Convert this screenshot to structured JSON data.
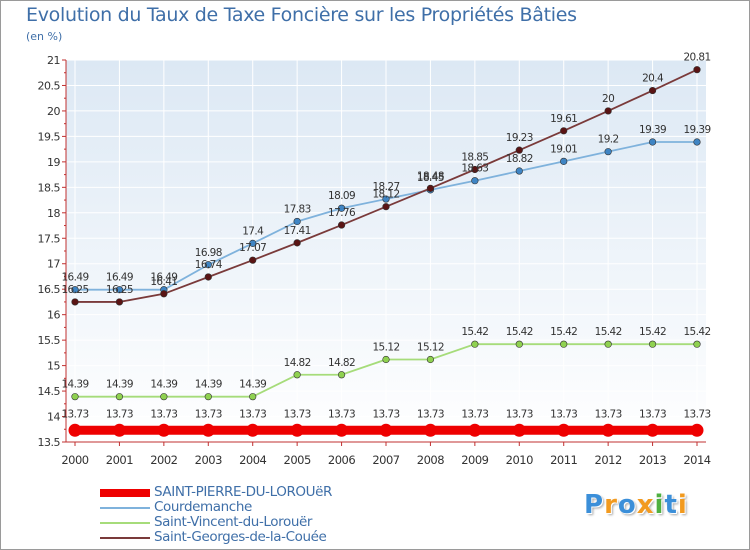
{
  "chart_data": {
    "type": "line",
    "title": "Evolution du Taux de Taxe Foncière sur les Propriétés Bâties",
    "unit_label": "(en %)",
    "x": [
      "2000",
      "2001",
      "2002",
      "2003",
      "2004",
      "2005",
      "2006",
      "2007",
      "2008",
      "2009",
      "2010",
      "2011",
      "2012",
      "2013",
      "2014"
    ],
    "ylim": [
      13.5,
      21
    ],
    "yticks": [
      "13.5",
      "14",
      "14.5",
      "15",
      "15.5",
      "16",
      "16.5",
      "17",
      "17.5",
      "18",
      "18.5",
      "19",
      "19.5",
      "20",
      "20.5",
      "21"
    ],
    "grid": true,
    "series": [
      {
        "name": "SAINT-PIERRE-DU-LOROUëR",
        "color": "#ee0000",
        "values": [
          13.73,
          13.73,
          13.73,
          13.73,
          13.73,
          13.73,
          13.73,
          13.73,
          13.73,
          13.73,
          13.73,
          13.73,
          13.73,
          13.73,
          13.73
        ],
        "labels": [
          "13.73",
          "13.73",
          "13.73",
          "13.73",
          "13.73",
          "13.73",
          "13.73",
          "13.73",
          "13.73",
          "13.73",
          "13.73",
          "13.73",
          "13.73",
          "13.73",
          "13.73"
        ]
      },
      {
        "name": "Courdemanche",
        "color": "#7fb2dc",
        "marker": "#3f85c4",
        "values": [
          16.49,
          16.49,
          16.49,
          16.98,
          17.4,
          17.83,
          18.09,
          18.27,
          18.45,
          18.63,
          18.82,
          19.01,
          19.2,
          19.39,
          19.39
        ],
        "labels": [
          "16.49",
          "16.49",
          "16.49",
          "16.98",
          "17.4",
          "17.83",
          "18.09",
          "18.27",
          "18.45",
          "18.63",
          "18.82",
          "19.01",
          "19.2",
          "19.39",
          "19.39"
        ]
      },
      {
        "name": "Saint-Vincent-du-Lorouër",
        "color": "#a6dc7a",
        "marker": "#8fd150",
        "values": [
          14.39,
          14.39,
          14.39,
          14.39,
          14.39,
          14.82,
          14.82,
          15.12,
          15.12,
          15.42,
          15.42,
          15.42,
          15.42,
          15.42,
          15.42
        ],
        "labels": [
          "14.39",
          "14.39",
          "14.39",
          "14.39",
          "14.39",
          "14.82",
          "14.82",
          "15.12",
          "15.12",
          "15.42",
          "15.42",
          "15.42",
          "15.42",
          "15.42",
          "15.42"
        ]
      },
      {
        "name": "Saint-Georges-de-la-Couée",
        "color": "#7a3a3a",
        "marker": "#5a1414",
        "values": [
          16.25,
          16.25,
          16.41,
          16.74,
          17.07,
          17.41,
          17.76,
          18.12,
          18.48,
          18.85,
          19.23,
          19.61,
          20,
          20.4,
          20.81
        ],
        "labels": [
          "16.25",
          "16.25",
          "16.41",
          "16.74",
          "17.07",
          "17.41",
          "17.76",
          "18.12",
          "18.48",
          "18.85",
          "19.23",
          "19.61",
          "20",
          "20.4",
          "20.81"
        ]
      }
    ],
    "legend_position": "bottom-left"
  },
  "logo": {
    "letters": [
      "P",
      "r",
      "o",
      "x",
      "i",
      "t",
      "i"
    ],
    "colors": [
      "#3b8fd9",
      "#f29a1f",
      "#3b8fd9",
      "#f29a1f",
      "#4fb040",
      "#3b8fd9",
      "#f29a1f"
    ]
  }
}
